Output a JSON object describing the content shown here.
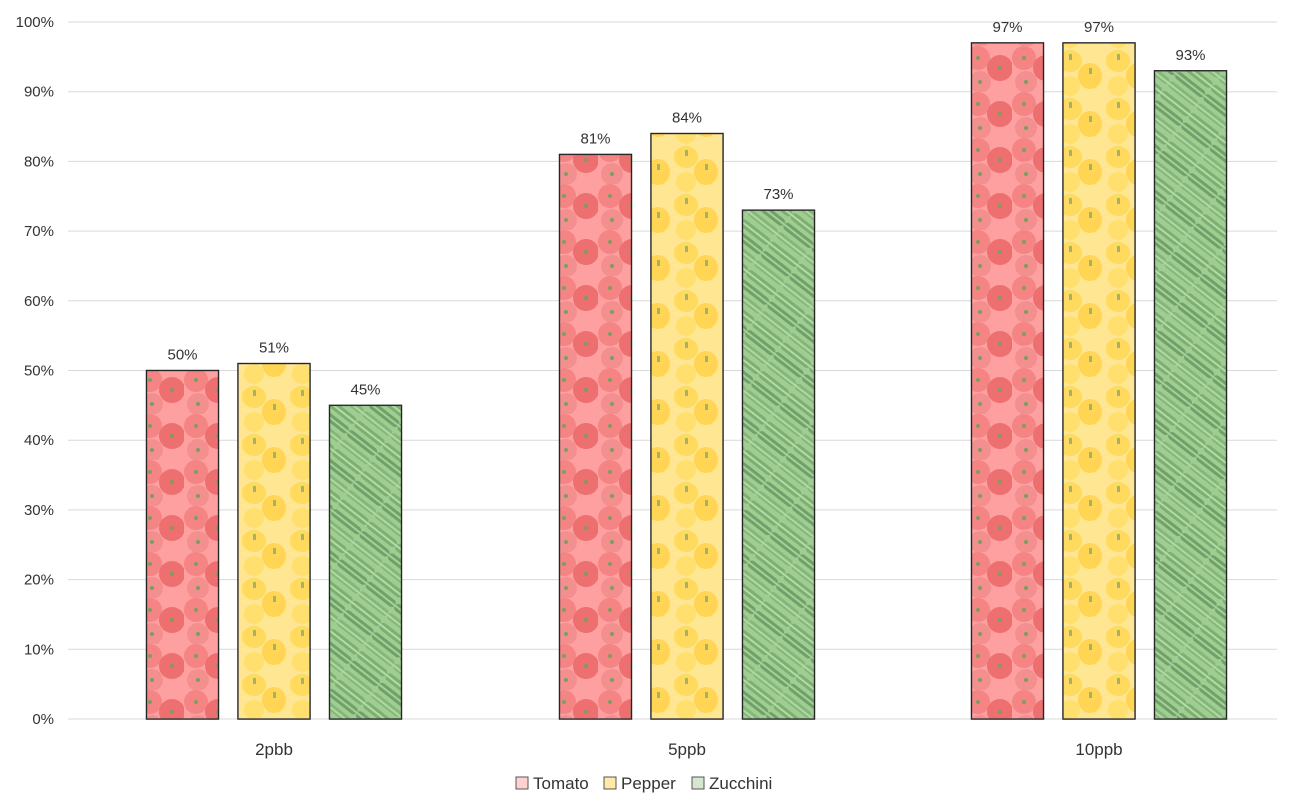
{
  "chart_data": {
    "type": "bar",
    "title": "",
    "xlabel": "",
    "ylabel": "",
    "categories": [
      "2pbb",
      "5ppb",
      "10ppb"
    ],
    "series": [
      {
        "name": "Tomato",
        "values": [
          50,
          81,
          97
        ],
        "labels": [
          "50%",
          "81%",
          "97%"
        ],
        "color": "#ef5b5b"
      },
      {
        "name": "Pepper",
        "values": [
          51,
          84,
          97
        ],
        "labels": [
          "51%",
          "84%",
          "97%"
        ],
        "color": "#ffd54a"
      },
      {
        "name": "Zucchini",
        "values": [
          45,
          73,
          93
        ],
        "labels": [
          "45%",
          "73%",
          "93%"
        ],
        "color": "#6ea85d"
      }
    ],
    "y_ticks": [
      "0%",
      "10%",
      "20%",
      "30%",
      "40%",
      "50%",
      "60%",
      "70%",
      "80%",
      "90%",
      "100%"
    ],
    "ylim": [
      0,
      100
    ],
    "grid": true,
    "legend_position": "bottom"
  }
}
